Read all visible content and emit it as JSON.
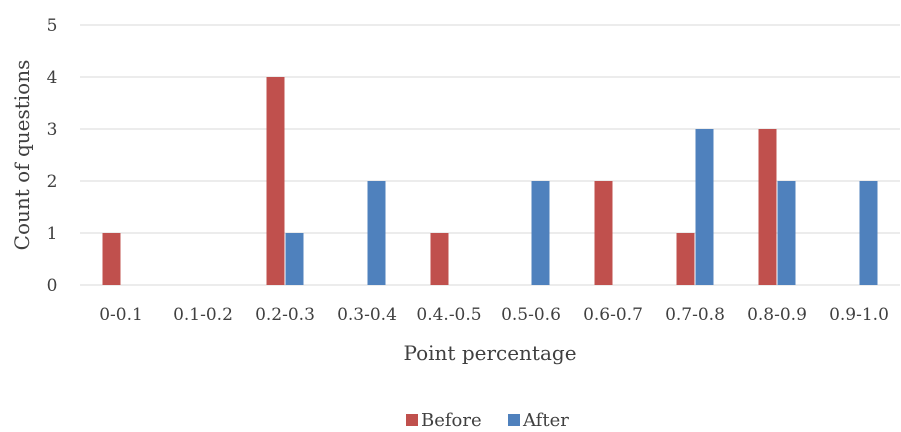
{
  "chart_data": {
    "type": "bar",
    "title": "",
    "xlabel": "Point percentage",
    "ylabel": "Count of  questions",
    "categories": [
      "0-0.1",
      "0.1-0.2",
      "0.2-0.3",
      "0.3-0.4",
      "0.4.-0.5",
      "0.5-0.6",
      "0.6-0.7",
      "0.7-0.8",
      "0.8-0.9",
      "0.9-1.0"
    ],
    "series": [
      {
        "name": "Before",
        "color": "#c0504d",
        "values": [
          1,
          0,
          4,
          0,
          1,
          0,
          2,
          1,
          3,
          0
        ]
      },
      {
        "name": "After",
        "color": "#4f81bd",
        "values": [
          0,
          0,
          1,
          2,
          0,
          2,
          0,
          3,
          2,
          2
        ]
      }
    ],
    "ylim": [
      0,
      5
    ],
    "yticks": [
      0,
      1,
      2,
      3,
      4,
      5
    ],
    "grid": true,
    "legend_position": "bottom"
  }
}
